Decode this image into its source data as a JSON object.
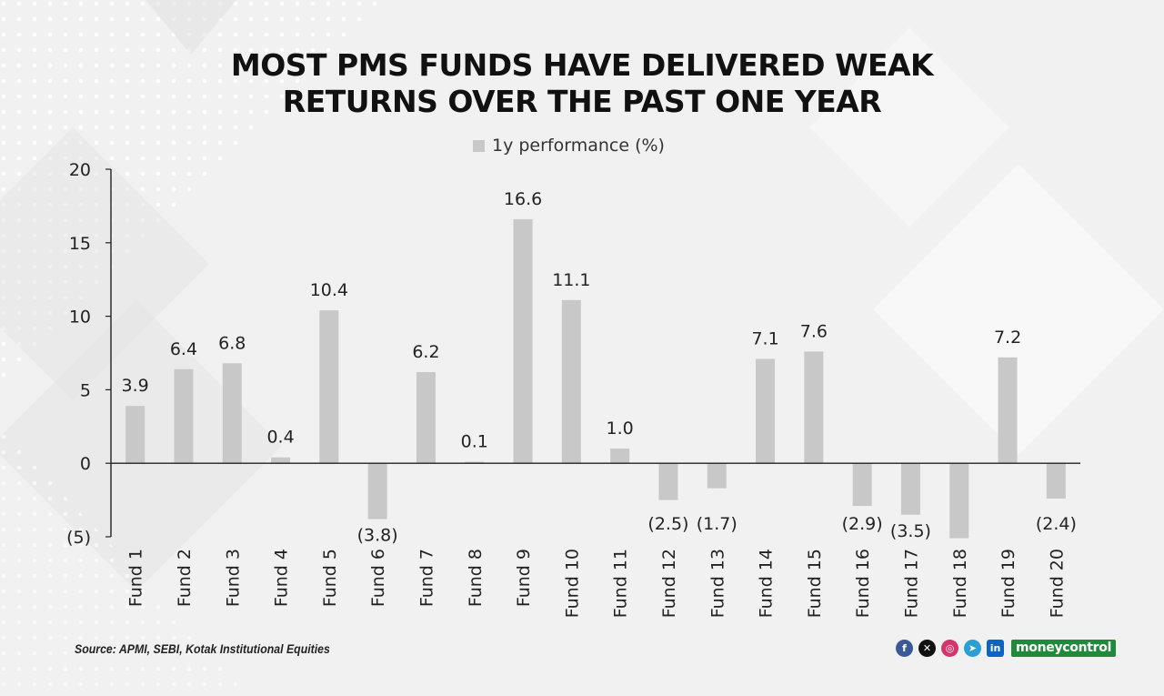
{
  "title_lines": [
    "MOST PMS FUNDS HAVE DELIVERED WEAK",
    "RETURNS OVER THE PAST ONE YEAR"
  ],
  "legend_label": "1y performance (%)",
  "source": "Source: APMI, SEBI, Kotak Institutional Equities",
  "brand": {
    "part1": "money",
    "part2": "control"
  },
  "social_icons": [
    "facebook-icon",
    "x-icon",
    "instagram-icon",
    "telegram-icon",
    "linkedin-icon"
  ],
  "colors": {
    "bar": "#c8c8c8",
    "background": "#f1f1f1",
    "brand": "#1f8a3a"
  },
  "chart_data": {
    "type": "bar",
    "title": "MOST PMS FUNDS HAVE DELIVERED WEAK RETURNS OVER THE PAST ONE YEAR",
    "categories": [
      "Fund 1",
      "Fund 2",
      "Fund 3",
      "Fund 4",
      "Fund 5",
      "Fund 6",
      "Fund 7",
      "Fund 8",
      "Fund 9",
      "Fund 10",
      "Fund 11",
      "Fund 12",
      "Fund 13",
      "Fund 14",
      "Fund 15",
      "Fund 16",
      "Fund 17",
      "Fund 18",
      "Fund 19",
      "Fund 20"
    ],
    "series": [
      {
        "name": "1y performance (%)",
        "values": [
          3.9,
          6.4,
          6.8,
          0.4,
          10.4,
          -3.8,
          6.2,
          0.1,
          16.6,
          11.1,
          1.0,
          -2.5,
          -1.7,
          7.1,
          7.6,
          -2.9,
          -3.5,
          -5.1,
          7.2,
          -2.4
        ],
        "labels": [
          "3.9",
          "6.4",
          "6.8",
          "0.4",
          "10.4",
          "(3.8)",
          "6.2",
          "0.1",
          "16.6",
          "11.1",
          "1.0",
          "(2.5)",
          "(1.7)",
          "7.1",
          "7.6",
          "(2.9)",
          "(3.5)",
          "",
          "7.2",
          "(2.4)"
        ]
      }
    ],
    "yticks": [
      20,
      15,
      10,
      5,
      0,
      -5
    ],
    "ytick_labels": [
      "20",
      "15",
      "10",
      "5",
      "0",
      "(5)"
    ],
    "ylim": [
      -5,
      20
    ],
    "xlabel": "",
    "ylabel": "",
    "legend_position": "top-center",
    "grid": false
  }
}
